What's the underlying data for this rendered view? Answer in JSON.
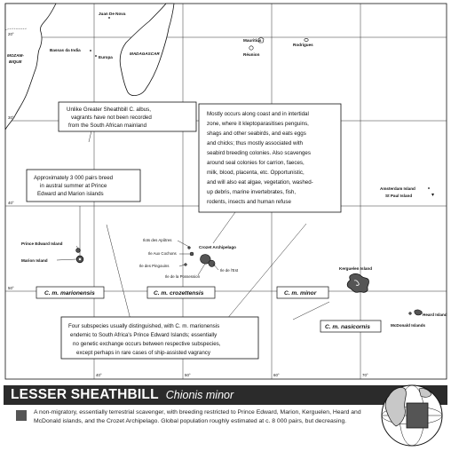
{
  "places": {
    "juan_de_nova": "Juan De Nova",
    "bassas_da_india": "Bassas da India",
    "europa": "Europa",
    "madagascar": "MADAGASCAR",
    "mozambique_1": "MOZAM-",
    "mozambique_2": "BIQUE",
    "mauritius": "Mauritius",
    "reunion": "Réunion",
    "rodrigues": "Rodrigues",
    "amsterdam": "Amsterdam Island",
    "st_paul": "St Paul Island",
    "prince_edward": "Prince Edward Island",
    "marion": "Marion Island",
    "ilots_apotres": "Ilots des Apôtres",
    "ile_cochons": "Ile Aux Cochons",
    "ile_pingouins": "Ile des Pingouins",
    "ile_possession": "Ile de la Possession",
    "ile_est": "Ile de l'Est",
    "crozet": "Crozet Archipelago",
    "kerguelen": "Kerguelen Island",
    "heard": "Heard Island",
    "mcdonald": "McDonald Islands"
  },
  "latitudes": {
    "l20": "20°",
    "l30": "30°",
    "l40": "40°",
    "l50": "50°"
  },
  "longitudes": {
    "e40": "40°",
    "e50": "50°",
    "e60": "60°",
    "e70": "70°"
  },
  "subspecies": {
    "marionensis": "C. m. marionensis",
    "crozettensis": "C. m. crozettensis",
    "minor": "C. m. minor",
    "nasicornis": "C. m. nasicornis"
  },
  "callouts": {
    "vagrants": [
      "Unlike Greater Sheathbill C. albus,",
      "vagrants have not been recorded",
      "from the South African mainland"
    ],
    "habitat": [
      "Mostly occurs along coast and in intertidal",
      "zone, where it kleptoparasitises penguins,",
      "shags and other seabirds, and eats eggs",
      "and chicks; thus mostly associated with",
      "seabird breeding colonies. Also scavenges",
      "around seal colonies for carrion, faeces,",
      "milk, blood, placenta, etc. Opportunistic,",
      "and will also eat algae, vegetation, washed-",
      "up debris, marine invertebrates, fish,",
      "rodents, insects and human refuse"
    ],
    "pairs": [
      "Approximately 3 000 pairs breed",
      "in austral summer at Prince",
      "Edward and Marion islands"
    ],
    "subspecies_note": [
      "Four subspecies usually distinguished, with C. m. marionensis",
      "endemic to South Africa's Prince Edward Islands; essentially",
      "no genetic exchange occurs between respective subspecies,",
      "except perhaps in rare cases of ship-assisted vagrancy"
    ]
  },
  "title": {
    "common": "LESSER SHEATHBILL",
    "scientific": "Chionis minor"
  },
  "legend": {
    "text": "A non-migratory, essentially terrestrial scavenger, with breeding restricted to Prince Edward, Marion, Kerguelen, Heard and McDonald islands, and the Crozet Archipelago. Global population roughly estimated at c. 8 000 pairs, but decreasing."
  },
  "colors": {
    "range": "#555555",
    "land": "#ffffff",
    "title_bar": "#2b2b2b",
    "globe_land": "#c8c8c8"
  }
}
